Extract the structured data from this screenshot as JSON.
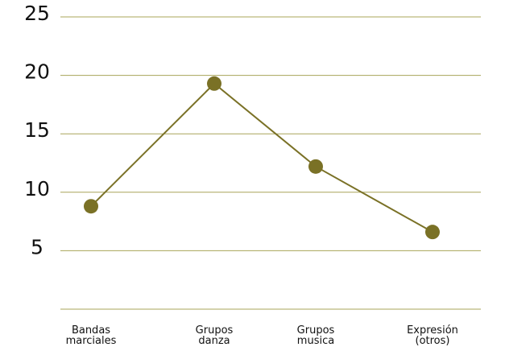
{
  "colors": {
    "line": "#7a7126",
    "marker": "#7a7126",
    "grid": "#a8a458",
    "text": "#111111"
  },
  "chart_data": {
    "type": "line",
    "title": "",
    "xlabel": "",
    "ylabel": "",
    "categories": [
      [
        "Bandas",
        "marciales"
      ],
      [
        "Grupos",
        "danza"
      ],
      [
        "Grupos",
        "musica"
      ],
      [
        "Expresión",
        "(otros)"
      ]
    ],
    "values": [
      8.8,
      19.3,
      12.2,
      6.6
    ],
    "ylim": [
      0,
      25
    ],
    "yticks": [
      5,
      10,
      15,
      20,
      25
    ],
    "grid": true,
    "legend": "none"
  }
}
